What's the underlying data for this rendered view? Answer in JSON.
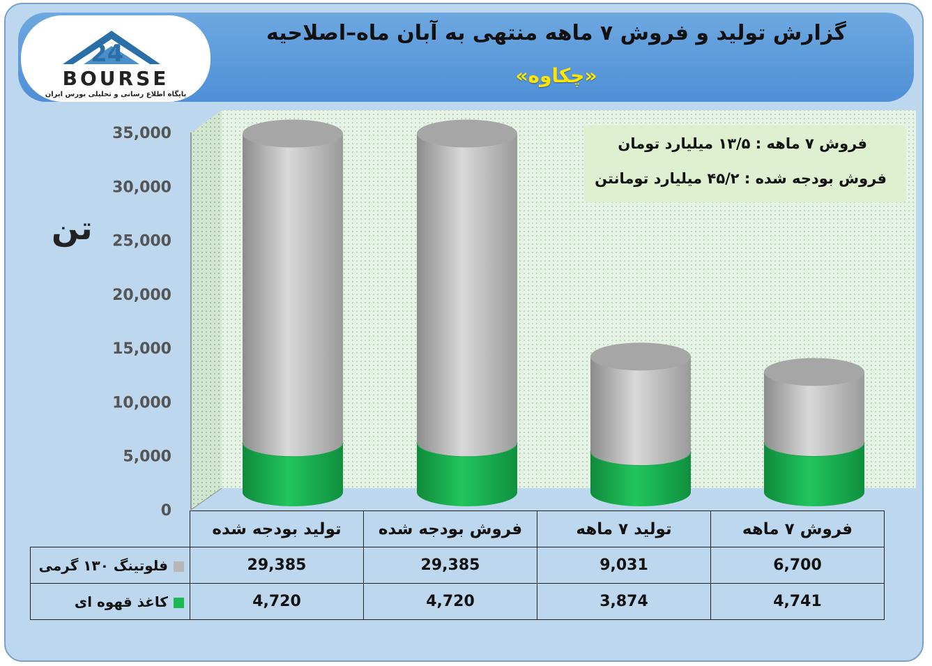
{
  "header": {
    "title": "گزارش تولید و فروش ۷ ماهه منتهی به آبان ماه–اصلاحیه",
    "subtitle": "«چکاوه»"
  },
  "logo": {
    "text": "BOURSE",
    "number": "24",
    "tagline": "پایگاه اطلاع رسانی و تحلیلی بورس ایران"
  },
  "unit_label": "تن",
  "info": {
    "line1": "فروش ۷ ماهه : ۱۳/۵ میلیارد تومان",
    "line2": "فروش بودجه شده : ۴۵/۲ میلیارد تومانتن"
  },
  "colors": {
    "series1": "#b7b7b7",
    "series2": "#1db954",
    "frame_bg": "#bdd7ee",
    "header_bg": "#5b9bd5",
    "subtitle": "#ffe600",
    "plot_bg": "#e6f2e6"
  },
  "chart_data": {
    "type": "bar",
    "stacked": true,
    "style": "3d-cylinder",
    "categories": [
      "تولید بودجه شده",
      "فروش بودجه شده",
      "تولید ۷ ماهه",
      "فروش ۷ ماهه"
    ],
    "series": [
      {
        "name": "فلوتینگ ۱۳۰ گرمی",
        "values": [
          29385,
          29385,
          9031,
          6700
        ]
      },
      {
        "name": "کاغذ قهوه ای",
        "values": [
          4720,
          4720,
          3874,
          4741
        ]
      }
    ],
    "y_ticks": [
      "0",
      "5,000",
      "10,000",
      "15,000",
      "20,000",
      "25,000",
      "30,000",
      "35,000"
    ],
    "ylim": [
      0,
      35000
    ],
    "grid": false,
    "legend": "data-table-bottom"
  },
  "table": {
    "rows": [
      {
        "label": "فلوتینگ ۱۳۰ گرمی",
        "cells": [
          "29,385",
          "29,385",
          "9,031",
          "6,700"
        ]
      },
      {
        "label": "کاغذ قهوه ای",
        "cells": [
          "4,720",
          "4,720",
          "3,874",
          "4,741"
        ]
      }
    ]
  }
}
